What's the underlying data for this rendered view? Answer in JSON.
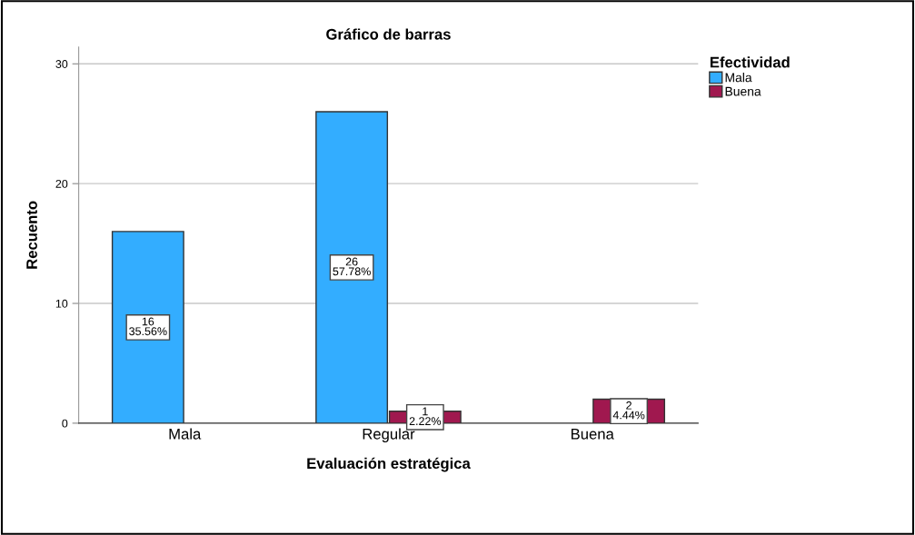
{
  "chart_data": {
    "type": "bar",
    "title": "Gráfico de barras",
    "xlabel": "Evaluación estratégica",
    "ylabel": "Recuento",
    "legend_title": "Efectividad",
    "categories": [
      "Mala",
      "Regular",
      "Buena"
    ],
    "series": [
      {
        "name": "Mala",
        "color": "#33adff",
        "values": [
          16,
          26,
          null
        ],
        "value_labels": [
          "16\n35.56%",
          "26\n57.78%",
          null
        ]
      },
      {
        "name": "Buena",
        "color": "#a0184f",
        "values": [
          null,
          1,
          2
        ],
        "value_labels": [
          null,
          "1\n2.22%",
          "2\n4.44%"
        ]
      }
    ],
    "ylim": [
      0,
      31.4
    ],
    "yticks": [
      0,
      10,
      20,
      30
    ],
    "grid": "y",
    "legend": "top right"
  }
}
